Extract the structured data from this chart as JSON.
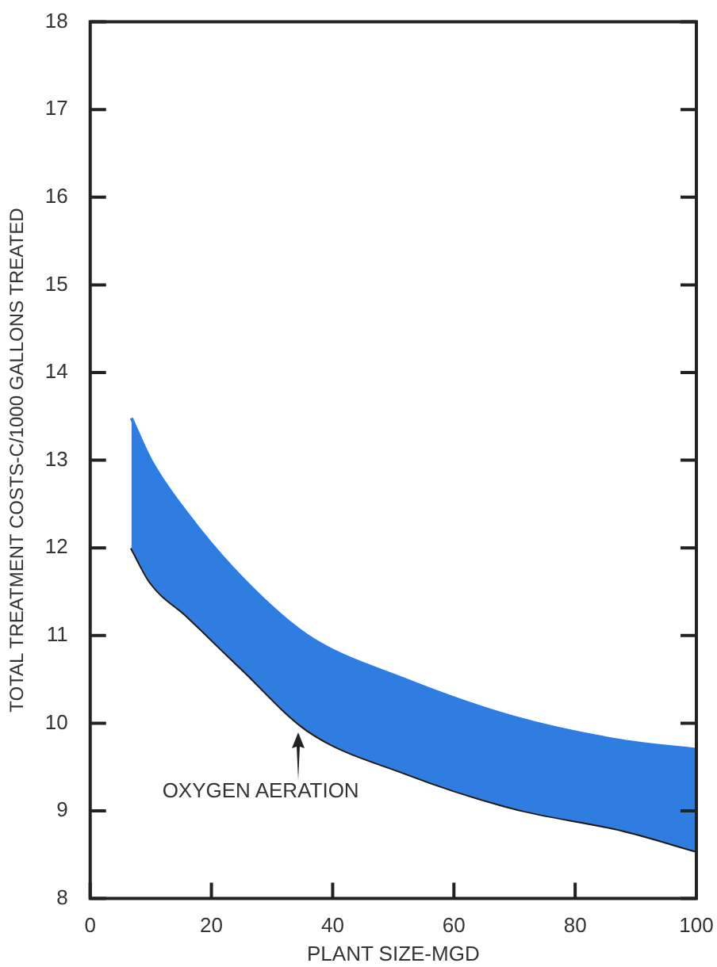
{
  "chart_data": {
    "type": "area",
    "xlabel": "PLANT SIZE-MGD",
    "ylabel": "TOTAL TREATMENT COSTS-C/1000 GALLONS TREATED",
    "annotations": [
      {
        "text": "OXYGEN AERATION",
        "x": 34.4,
        "y": 9.95
      }
    ],
    "xlim": [
      0,
      100
    ],
    "xticks": [
      0,
      20,
      40,
      60,
      80,
      100
    ],
    "ylim": [
      8,
      18
    ],
    "yticks": [
      8,
      9,
      10,
      11,
      12,
      13,
      14,
      15,
      16,
      17,
      18
    ],
    "grid": false,
    "legend": false,
    "series": [
      {
        "color": "#2f7de0",
        "x": [
          6.8,
          10,
          16,
          25,
          35.8,
          51.9,
          69.8,
          87.7,
          100
        ],
        "values": [
          13.48,
          13.0,
          12.39,
          11.66,
          11.0,
          10.5,
          10.07,
          9.8,
          9.7
        ]
      },
      {
        "type": "line",
        "color": "#1a1a1a",
        "x": [
          6.8,
          10,
          16,
          25,
          35.8,
          51.9,
          69.8,
          87.7,
          100
        ],
        "values": [
          12.0,
          11.6,
          11.22,
          10.62,
          9.92,
          9.43,
          9.03,
          8.78,
          8.54
        ]
      }
    ]
  }
}
